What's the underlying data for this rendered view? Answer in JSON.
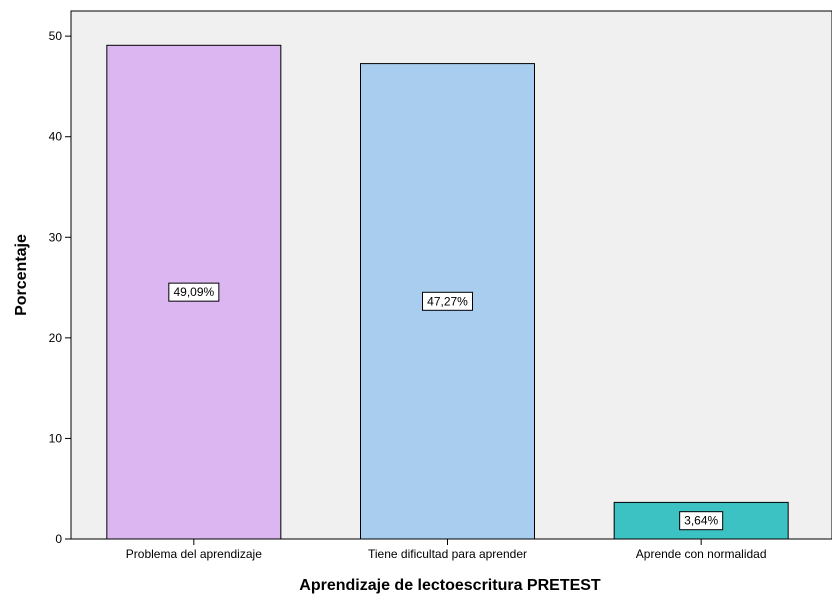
{
  "chart_data": {
    "type": "bar",
    "title": "",
    "xlabel": "Aprendizaje de lectoescritura PRETEST",
    "ylabel": "Porcentaje",
    "ylim": [
      0,
      52.5
    ],
    "yticks": [
      0,
      10,
      20,
      30,
      40,
      50
    ],
    "categories": [
      "Problema del aprendizaje",
      "Tiene dificultad para aprender",
      "Aprende con normalidad"
    ],
    "values": [
      49.09,
      47.27,
      3.64
    ],
    "value_labels": [
      "49,09%",
      "47,27%",
      "3,64%"
    ],
    "colors": [
      "#dcb6f0",
      "#a9cdee",
      "#3cc2c2"
    ],
    "plot_background": "#f0f0f0",
    "grid": false,
    "legend": "none"
  }
}
